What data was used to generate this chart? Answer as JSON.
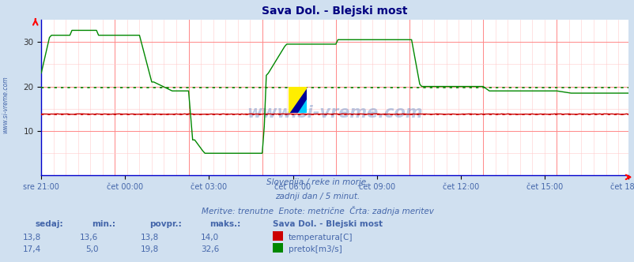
{
  "title": "Sava Dol. - Blejski most",
  "title_color": "#000080",
  "background_color": "#d0e0f0",
  "plot_bg_color": "#ffffff",
  "grid_color_major": "#ff8888",
  "grid_color_minor": "#ffcccc",
  "xlabel_color": "#4466aa",
  "x_labels": [
    "sre 21:00",
    "čet 00:00",
    "čet 03:00",
    "čet 06:00",
    "čet 09:00",
    "čet 12:00",
    "čet 15:00",
    "čet 18:00"
  ],
  "x_tick_fracs": [
    0.0,
    0.143,
    0.286,
    0.429,
    0.571,
    0.714,
    0.857,
    1.0
  ],
  "total_points": 288,
  "ylim": [
    0,
    35
  ],
  "yticks": [
    10,
    20,
    30
  ],
  "temp_color": "#cc0000",
  "flow_color": "#008800",
  "temp_avg": 13.8,
  "flow_avg": 19.8,
  "watermark": "www.si-vreme.com",
  "watermark_color": "#2255aa",
  "footer_line1": "Slovenija / reke in morje.",
  "footer_line2": "zadnji dan / 5 minut.",
  "footer_line3": "Meritve: trenutne  Enote: metrične  Črta: zadnja meritev",
  "footer_color": "#4466aa",
  "table_headers": [
    "sedaj:",
    "min.:",
    "povpr.:",
    "maks.:"
  ],
  "station_label": "Sava Dol. - Blejski most",
  "temp_row": [
    "13,8",
    "13,6",
    "13,8",
    "14,0"
  ],
  "flow_row": [
    "17,4",
    "5,0",
    "19,8",
    "32,6"
  ],
  "legend_temp": "temperatura[C]",
  "legend_flow": "pretok[m3/s]",
  "sidebar_text": "www.si-vreme.com",
  "sidebar_color": "#4466aa",
  "icon_colors": [
    "#ffff00",
    "#00aaff",
    "#000088"
  ]
}
